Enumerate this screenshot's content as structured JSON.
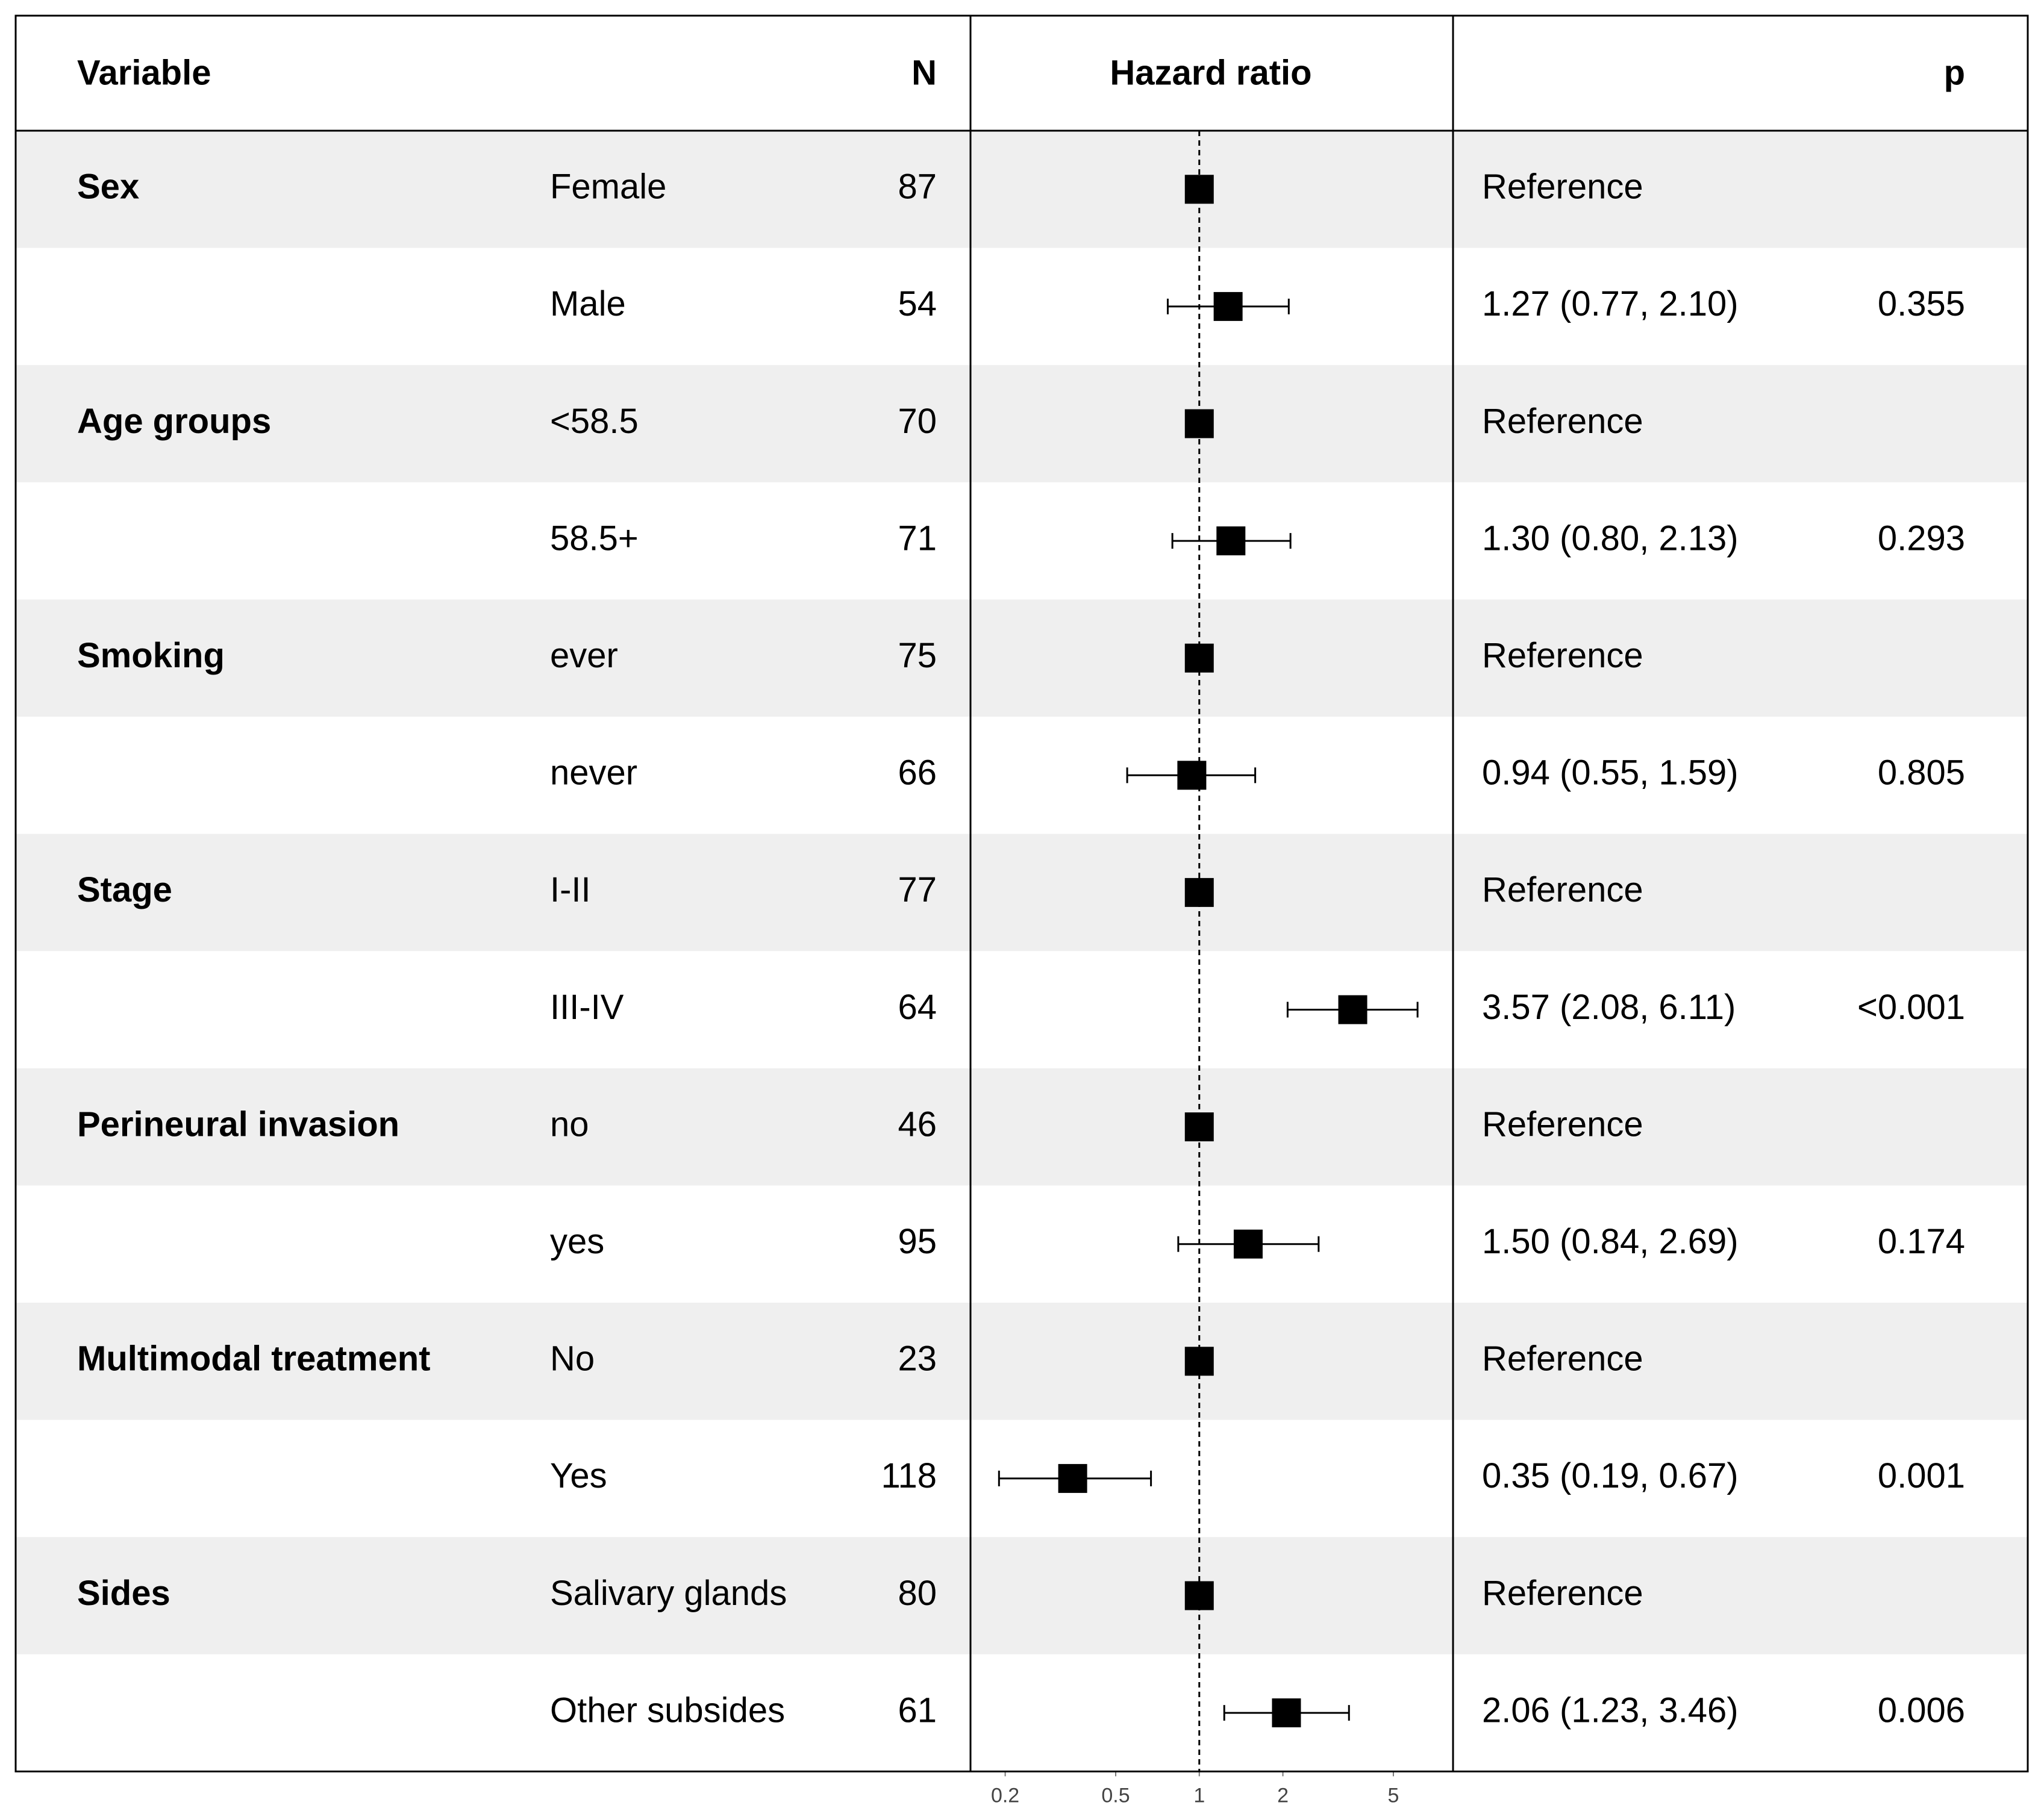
{
  "chart_data": {
    "type": "forest",
    "headers": {
      "variable": "Variable",
      "n": "N",
      "plot": "Hazard ratio",
      "p": "p"
    },
    "x_scale": "log",
    "xlim": [
      0.15,
      8.2
    ],
    "xticks": [
      0.2,
      0.5,
      1,
      2,
      5
    ],
    "ref_line": 1,
    "marker_color": "#000000",
    "shade_color": "#efefef",
    "rows": [
      {
        "variable": "Sex",
        "level": "Female",
        "n": 87,
        "hr": 1,
        "estimate": "Reference"
      },
      {
        "variable": null,
        "level": "Male",
        "n": 54,
        "hr": 1.27,
        "lower": 0.77,
        "upper": 2.1,
        "estimate": "1.27 (0.77, 2.10)",
        "p": "0.355"
      },
      {
        "variable": "Age groups",
        "level": "<58.5",
        "n": 70,
        "hr": 1,
        "estimate": "Reference"
      },
      {
        "variable": null,
        "level": "58.5+",
        "n": 71,
        "hr": 1.3,
        "lower": 0.8,
        "upper": 2.13,
        "estimate": "1.30 (0.80, 2.13)",
        "p": "0.293"
      },
      {
        "variable": "Smoking",
        "level": "ever",
        "n": 75,
        "hr": 1,
        "estimate": "Reference"
      },
      {
        "variable": null,
        "level": "never",
        "n": 66,
        "hr": 0.94,
        "lower": 0.55,
        "upper": 1.59,
        "estimate": "0.94 (0.55, 1.59)",
        "p": "0.805"
      },
      {
        "variable": "Stage",
        "level": "I-II",
        "n": 77,
        "hr": 1,
        "estimate": "Reference"
      },
      {
        "variable": null,
        "level": "III-IV",
        "n": 64,
        "hr": 3.57,
        "lower": 2.08,
        "upper": 6.11,
        "estimate": "3.57 (2.08, 6.11)",
        "p": "<0.001"
      },
      {
        "variable": "Perineural invasion",
        "level": "no",
        "n": 46,
        "hr": 1,
        "estimate": "Reference"
      },
      {
        "variable": null,
        "level": "yes",
        "n": 95,
        "hr": 1.5,
        "lower": 0.84,
        "upper": 2.69,
        "estimate": "1.50 (0.84, 2.69)",
        "p": "0.174"
      },
      {
        "variable": "Multimodal treatment",
        "level": "No",
        "n": 23,
        "hr": 1,
        "estimate": "Reference"
      },
      {
        "variable": null,
        "level": "Yes",
        "n": 118,
        "hr": 0.35,
        "lower": 0.19,
        "upper": 0.67,
        "estimate": "0.35 (0.19, 0.67)",
        "p": "0.001"
      },
      {
        "variable": "Sides",
        "level": "Salivary glands",
        "n": 80,
        "hr": 1,
        "estimate": "Reference"
      },
      {
        "variable": null,
        "level": "Other subsides",
        "n": 61,
        "hr": 2.06,
        "lower": 1.23,
        "upper": 3.46,
        "estimate": "2.06 (1.23, 3.46)",
        "p": "0.006"
      }
    ]
  }
}
